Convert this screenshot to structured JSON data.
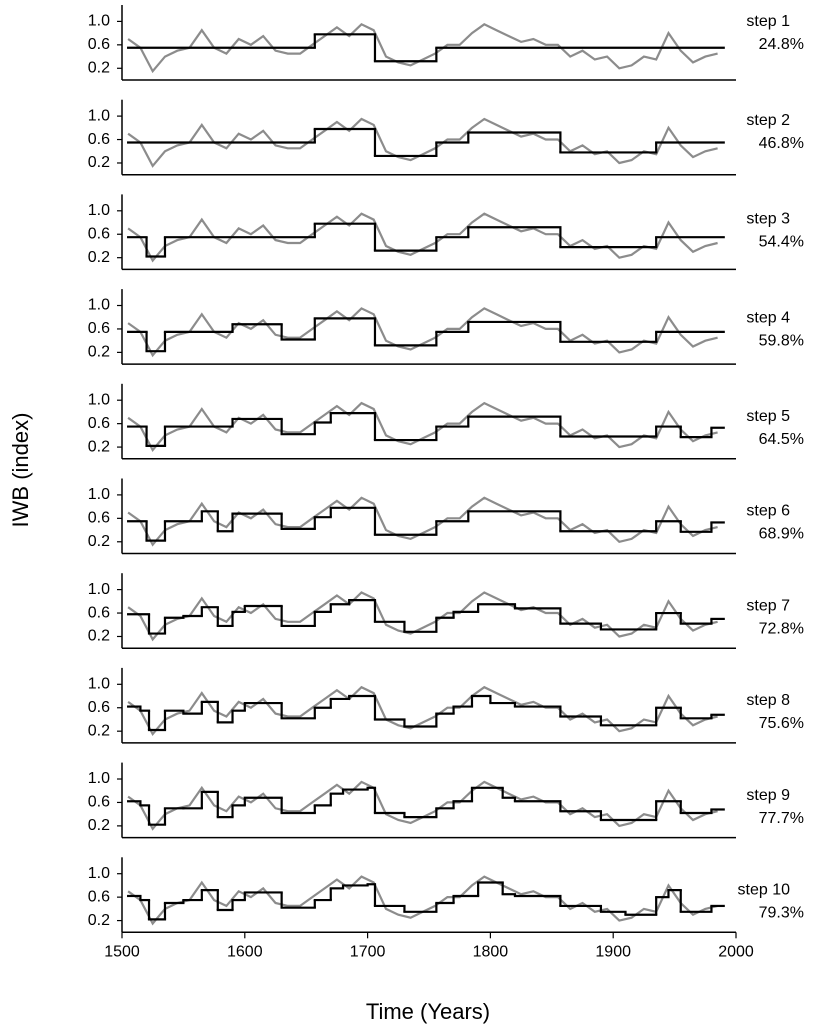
{
  "chart_data": {
    "type": "line",
    "xlabel": "Time (Years)",
    "ylabel": "IWB (index)",
    "xlim": [
      1500,
      2000
    ],
    "xticks": [
      1500,
      1600,
      1700,
      1800,
      1900,
      2000
    ],
    "ylim": [
      0,
      1.28
    ],
    "yticks": [
      0.2,
      0.6,
      {
        "value": 1,
        "label": "1.0"
      }
    ],
    "x": [
      1505,
      1515,
      1525,
      1535,
      1545,
      1555,
      1565,
      1575,
      1585,
      1595,
      1605,
      1615,
      1625,
      1635,
      1645,
      1655,
      1665,
      1675,
      1685,
      1695,
      1705,
      1715,
      1725,
      1735,
      1745,
      1755,
      1765,
      1775,
      1785,
      1795,
      1805,
      1815,
      1825,
      1835,
      1845,
      1855,
      1865,
      1875,
      1885,
      1895,
      1905,
      1915,
      1925,
      1935,
      1945,
      1955,
      1965,
      1975,
      1985
    ],
    "raw": {
      "color": "#8c8c8c",
      "values": [
        0.7,
        0.55,
        0.15,
        0.4,
        0.5,
        0.55,
        0.85,
        0.55,
        0.45,
        0.7,
        0.6,
        0.75,
        0.5,
        0.45,
        0.45,
        0.6,
        0.75,
        0.9,
        0.75,
        0.95,
        0.85,
        0.4,
        0.3,
        0.25,
        0.35,
        0.45,
        0.6,
        0.6,
        0.8,
        0.95,
        0.85,
        0.75,
        0.65,
        0.7,
        0.6,
        0.6,
        0.4,
        0.5,
        0.35,
        0.4,
        0.2,
        0.25,
        0.4,
        0.35,
        0.8,
        0.5,
        0.3,
        0.4,
        0.45
      ]
    },
    "fit_color": "#000000",
    "panels": [
      {
        "label": "step 1",
        "annotation": "24.8%",
        "edges": [
          1505,
          1657,
          1706,
          1756,
          1990
        ],
        "values": [
          0.55,
          0.78,
          0.32,
          0.55
        ]
      },
      {
        "label": "step 2",
        "annotation": "46.8%",
        "edges": [
          1505,
          1657,
          1706,
          1756,
          1782,
          1857,
          1935,
          1990
        ],
        "values": [
          0.55,
          0.78,
          0.32,
          0.55,
          0.72,
          0.38,
          0.55
        ]
      },
      {
        "label": "step 3",
        "annotation": "54.4%",
        "edges": [
          1505,
          1520,
          1535,
          1657,
          1706,
          1756,
          1782,
          1857,
          1935,
          1990
        ],
        "values": [
          0.55,
          0.22,
          0.55,
          0.78,
          0.32,
          0.55,
          0.72,
          0.38,
          0.55
        ]
      },
      {
        "label": "step 4",
        "annotation": "59.8%",
        "edges": [
          1505,
          1520,
          1535,
          1590,
          1630,
          1657,
          1706,
          1756,
          1782,
          1857,
          1935,
          1990
        ],
        "values": [
          0.55,
          0.22,
          0.55,
          0.68,
          0.42,
          0.78,
          0.32,
          0.55,
          0.72,
          0.38,
          0.55
        ]
      },
      {
        "label": "step 5",
        "annotation": "64.5%",
        "edges": [
          1505,
          1520,
          1535,
          1590,
          1630,
          1657,
          1670,
          1706,
          1756,
          1782,
          1857,
          1935,
          1955,
          1980,
          1990
        ],
        "values": [
          0.55,
          0.22,
          0.55,
          0.68,
          0.42,
          0.62,
          0.78,
          0.32,
          0.55,
          0.72,
          0.38,
          0.55,
          0.37,
          0.53
        ]
      },
      {
        "label": "step 6",
        "annotation": "68.9%",
        "edges": [
          1505,
          1520,
          1535,
          1565,
          1578,
          1590,
          1630,
          1657,
          1670,
          1706,
          1756,
          1782,
          1857,
          1935,
          1955,
          1980,
          1990
        ],
        "values": [
          0.55,
          0.22,
          0.55,
          0.72,
          0.38,
          0.68,
          0.42,
          0.62,
          0.78,
          0.32,
          0.55,
          0.72,
          0.38,
          0.55,
          0.37,
          0.53
        ]
      },
      {
        "label": "step 7",
        "annotation": "72.8%",
        "edges": [
          1505,
          1522,
          1535,
          1550,
          1565,
          1578,
          1590,
          1600,
          1630,
          1657,
          1670,
          1685,
          1706,
          1730,
          1756,
          1770,
          1790,
          1820,
          1857,
          1890,
          1935,
          1955,
          1980,
          1990
        ],
        "values": [
          0.58,
          0.25,
          0.52,
          0.55,
          0.7,
          0.38,
          0.62,
          0.72,
          0.38,
          0.62,
          0.75,
          0.82,
          0.45,
          0.28,
          0.52,
          0.62,
          0.75,
          0.68,
          0.42,
          0.32,
          0.6,
          0.42,
          0.5
        ]
      },
      {
        "label": "step 8",
        "annotation": "75.6%",
        "edges": [
          1505,
          1515,
          1522,
          1535,
          1550,
          1565,
          1578,
          1590,
          1600,
          1630,
          1657,
          1670,
          1685,
          1706,
          1730,
          1756,
          1770,
          1785,
          1800,
          1820,
          1857,
          1890,
          1935,
          1955,
          1980,
          1990
        ],
        "values": [
          0.62,
          0.55,
          0.22,
          0.55,
          0.5,
          0.7,
          0.35,
          0.55,
          0.68,
          0.42,
          0.6,
          0.75,
          0.8,
          0.4,
          0.28,
          0.5,
          0.62,
          0.8,
          0.68,
          0.62,
          0.45,
          0.3,
          0.6,
          0.42,
          0.48
        ]
      },
      {
        "label": "step 9",
        "annotation": "77.7%",
        "edges": [
          1505,
          1515,
          1522,
          1535,
          1550,
          1565,
          1578,
          1590,
          1600,
          1630,
          1657,
          1670,
          1680,
          1700,
          1706,
          1730,
          1756,
          1770,
          1785,
          1810,
          1820,
          1857,
          1890,
          1935,
          1955,
          1980,
          1990
        ],
        "values": [
          0.62,
          0.55,
          0.22,
          0.5,
          0.5,
          0.78,
          0.35,
          0.55,
          0.68,
          0.42,
          0.55,
          0.75,
          0.82,
          0.85,
          0.42,
          0.35,
          0.5,
          0.62,
          0.85,
          0.68,
          0.62,
          0.45,
          0.3,
          0.62,
          0.42,
          0.48
        ]
      },
      {
        "label": "step 10",
        "annotation": "79.3%",
        "edges": [
          1505,
          1515,
          1522,
          1535,
          1550,
          1565,
          1578,
          1590,
          1600,
          1630,
          1657,
          1670,
          1680,
          1700,
          1706,
          1730,
          1756,
          1770,
          1790,
          1810,
          1820,
          1857,
          1890,
          1910,
          1935,
          1945,
          1955,
          1980,
          1990
        ],
        "values": [
          0.62,
          0.55,
          0.22,
          0.5,
          0.55,
          0.72,
          0.38,
          0.55,
          0.68,
          0.42,
          0.55,
          0.75,
          0.8,
          0.82,
          0.45,
          0.35,
          0.5,
          0.62,
          0.85,
          0.65,
          0.62,
          0.45,
          0.35,
          0.3,
          0.6,
          0.72,
          0.35,
          0.45
        ]
      }
    ]
  }
}
